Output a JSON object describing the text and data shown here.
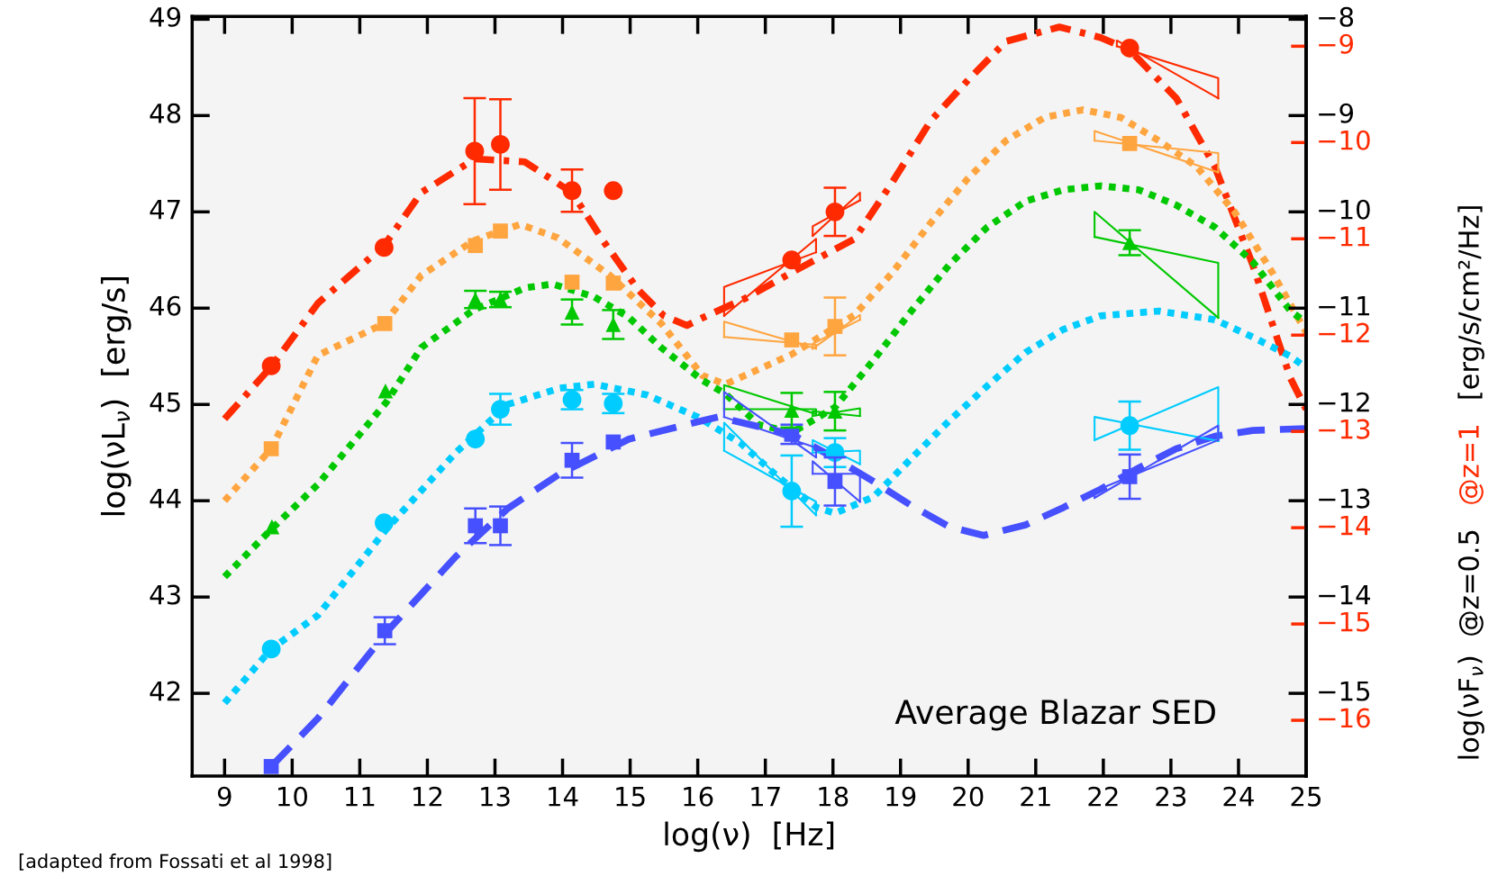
{
  "chart_data": {
    "type": "scatter",
    "xlabel": "log(ν)  [Hz]",
    "ylabel": "log(νL$_{ν}$)  [erg/s]",
    "y2label": "log(νF$_{ν}$)  @z=0.5",
    "y3label": "@z=1",
    "annotations": [
      "Average Blazar SED",
      "[adapted from Fossati et al 1998]",
      "[erg/s/cm²/Hz]"
    ],
    "xlim": [
      8.52,
      25
    ],
    "xticks": [
      9,
      10,
      11,
      12,
      13,
      14,
      15,
      16,
      17,
      18,
      19,
      20,
      21,
      22,
      23,
      24,
      25
    ],
    "ylim": [
      41.14,
      49.03
    ],
    "yticks": [
      42,
      43,
      44,
      45,
      46,
      47,
      48,
      49
    ],
    "y2lim": [
      -15.86,
      -7.97
    ],
    "y2ticks": [
      {
        "value": -15,
        "label": "−15"
      },
      {
        "value": -14,
        "label": "−14"
      },
      {
        "value": -13,
        "label": "−13"
      },
      {
        "value": -12,
        "label": "−12"
      },
      {
        "value": -11,
        "label": "−11"
      },
      {
        "value": -10,
        "label": "−10"
      },
      {
        "value": -9,
        "label": "−9"
      },
      {
        "value": -8,
        "label": "−8"
      }
    ],
    "y3lim": [
      -16.58,
      -8.69
    ],
    "y3ticks": [
      {
        "value": -16,
        "label": "−16"
      },
      {
        "value": -15,
        "label": "−15"
      },
      {
        "value": -14,
        "label": "−14"
      },
      {
        "value": -13,
        "label": "−13"
      },
      {
        "value": -12,
        "label": "−12"
      },
      {
        "value": -11,
        "label": "−11"
      },
      {
        "value": -10,
        "label": "−10"
      },
      {
        "value": -9,
        "label": "−9"
      }
    ],
    "grid": false,
    "legend": false,
    "series": [
      {
        "type": "line",
        "color": "#ff2a00",
        "line_style": "dashdot",
        "marker": "none",
        "x": [
          9,
          9.7,
          10.38,
          11.36,
          11.91,
          12.7,
          13.44,
          14.14,
          14.61,
          15.12,
          15.5,
          15.84,
          16.07,
          16.7,
          17.39,
          18.32,
          18.88,
          19.44,
          20.0,
          20.56,
          21.35,
          21.96,
          22.39,
          23.08,
          23.65,
          24.21,
          24.77,
          25
        ],
        "values": [
          44.85,
          45.4,
          46.05,
          46.65,
          47.2,
          47.55,
          47.52,
          47.2,
          46.69,
          46.19,
          45.92,
          45.82,
          45.9,
          46.1,
          46.37,
          46.72,
          47.31,
          47.94,
          48.37,
          48.77,
          48.92,
          48.81,
          48.68,
          48.18,
          47.47,
          46.45,
          45.27,
          44.95
        ]
      },
      {
        "type": "line",
        "color": "#ffa540",
        "line_style": "dotted",
        "marker": "none",
        "x": [
          9,
          9.69,
          10.38,
          11.36,
          11.91,
          12.68,
          13.37,
          13.93,
          14.7,
          15.46,
          16.07,
          16.41,
          17.39,
          18.32,
          18.88,
          19.44,
          20.0,
          20.56,
          21.13,
          21.7,
          22.26,
          22.82,
          23.38,
          23.94,
          24.5,
          25
        ],
        "values": [
          44.0,
          44.54,
          45.51,
          45.84,
          46.34,
          46.7,
          46.87,
          46.73,
          46.34,
          45.84,
          45.3,
          45.21,
          45.52,
          45.93,
          46.37,
          46.88,
          47.35,
          47.74,
          47.98,
          48.06,
          47.98,
          47.74,
          47.47,
          47.0,
          46.37,
          45.75
        ]
      },
      {
        "type": "line",
        "color": "#00c800",
        "line_style": "dotted",
        "marker": "none",
        "x": [
          9,
          9.7,
          10.38,
          11.4,
          11.91,
          12.68,
          13.44,
          13.85,
          14.46,
          14.97,
          15.46,
          16.07,
          16.41,
          16.9,
          17.4,
          18.03,
          18.6,
          19.16,
          19.72,
          20.28,
          20.85,
          21.41,
          21.96,
          22.52,
          23.08,
          23.65,
          24.21,
          24.77,
          25
        ],
        "values": [
          43.21,
          43.71,
          44.17,
          45.03,
          45.59,
          45.98,
          46.21,
          46.25,
          46.12,
          45.91,
          45.59,
          45.25,
          45.11,
          44.79,
          44.71,
          44.97,
          45.46,
          45.97,
          46.45,
          46.84,
          47.11,
          47.23,
          47.27,
          47.23,
          47.07,
          46.84,
          46.48,
          45.97,
          45.85
        ]
      },
      {
        "type": "line",
        "color": "#00ccff",
        "line_style": "dotted",
        "marker": "none",
        "x": [
          9,
          9.69,
          10.38,
          11.4,
          12.42,
          13.19,
          13.96,
          14.47,
          15.24,
          16.0,
          16.63,
          17.2,
          17.76,
          18.03,
          18.6,
          19.16,
          19.72,
          20.28,
          20.85,
          21.41,
          21.96,
          22.82,
          23.65,
          24.21,
          24.77,
          25
        ],
        "values": [
          41.9,
          42.46,
          42.81,
          43.71,
          44.5,
          45.0,
          45.17,
          45.21,
          45.1,
          44.87,
          44.6,
          44.24,
          43.93,
          43.87,
          44.04,
          44.44,
          44.83,
          45.19,
          45.54,
          45.78,
          45.92,
          45.97,
          45.88,
          45.7,
          45.5,
          45.38
        ]
      },
      {
        "type": "line",
        "color": "#4650ff",
        "line_style": "dashed",
        "marker": "none",
        "x": [
          9.69,
          10.38,
          11.4,
          12.42,
          13.19,
          13.96,
          14.98,
          16.0,
          16.3,
          17.39,
          18.03,
          18.6,
          19.16,
          19.72,
          20.23,
          20.85,
          21.41,
          21.96,
          22.52,
          23.08,
          23.65,
          24.21,
          25
        ],
        "values": [
          41.24,
          41.74,
          42.64,
          43.42,
          43.92,
          44.28,
          44.64,
          44.82,
          44.87,
          44.69,
          44.44,
          44.2,
          43.95,
          43.73,
          43.64,
          43.75,
          43.93,
          44.12,
          44.34,
          44.54,
          44.67,
          44.73,
          44.75
        ]
      },
      {
        "type": "line",
        "color": "#ff2a00",
        "line_style": "solid",
        "marker": "none",
        "x": [
          16.39,
          16.39,
          17.75
        ],
        "values": [
          45.92,
          46.22,
          46.58
        ]
      },
      {
        "type": "line",
        "color": "#ff2a00",
        "line_style": "solid",
        "marker": "none",
        "x": [
          16.39,
          17.75,
          17.75
        ],
        "values": [
          45.92,
          46.72,
          46.58
        ]
      },
      {
        "type": "line",
        "color": "#ff2a00",
        "line_style": "solid",
        "marker": "none",
        "x": [
          17.7,
          17.7,
          18.4
        ],
        "values": [
          46.75,
          46.85,
          47.12
        ]
      },
      {
        "type": "line",
        "color": "#ff2a00",
        "line_style": "solid",
        "marker": "none",
        "x": [
          17.7,
          18.4,
          18.4
        ],
        "values": [
          46.75,
          47.2,
          47.12
        ]
      },
      {
        "type": "line",
        "color": "#ff2a00",
        "line_style": "solid",
        "marker": "none",
        "x": [
          22.2,
          22.2,
          23.7
        ],
        "values": [
          48.72,
          48.78,
          48.18
        ]
      },
      {
        "type": "line",
        "color": "#ff2a00",
        "line_style": "solid",
        "marker": "none",
        "x": [
          22.2,
          23.7,
          23.7
        ],
        "values": [
          48.72,
          48.39,
          48.18
        ]
      },
      {
        "type": "line",
        "color": "#ffa540",
        "line_style": "solid",
        "marker": "none",
        "x": [
          16.39,
          16.39,
          17.75
        ],
        "values": [
          45.7,
          45.86,
          45.58
        ]
      },
      {
        "type": "line",
        "color": "#ffa540",
        "line_style": "solid",
        "marker": "none",
        "x": [
          16.39,
          17.75,
          17.75
        ],
        "values": [
          45.7,
          45.62,
          45.58
        ]
      },
      {
        "type": "line",
        "color": "#ffa540",
        "line_style": "solid",
        "marker": "none",
        "x": [
          17.7,
          17.7,
          18.4
        ],
        "values": [
          45.58,
          45.63,
          45.88
        ]
      },
      {
        "type": "line",
        "color": "#ffa540",
        "line_style": "solid",
        "marker": "none",
        "x": [
          17.7,
          18.4,
          18.4
        ],
        "values": [
          45.58,
          45.93,
          45.88
        ]
      },
      {
        "type": "line",
        "color": "#ffa540",
        "line_style": "solid",
        "marker": "none",
        "x": [
          21.87,
          21.87,
          23.7
        ],
        "values": [
          47.74,
          47.84,
          47.41
        ]
      },
      {
        "type": "line",
        "color": "#ffa540",
        "line_style": "solid",
        "marker": "none",
        "x": [
          21.87,
          23.7,
          23.7
        ],
        "values": [
          47.74,
          47.61,
          47.41
        ]
      },
      {
        "type": "line",
        "color": "#00c800",
        "line_style": "solid",
        "marker": "none",
        "x": [
          16.39,
          16.39,
          17.75
        ],
        "values": [
          44.95,
          45.2,
          44.9
        ]
      },
      {
        "type": "line",
        "color": "#00c800",
        "line_style": "solid",
        "marker": "none",
        "x": [
          16.39,
          17.75,
          17.75
        ],
        "values": [
          44.95,
          44.95,
          44.9
        ]
      },
      {
        "type": "line",
        "color": "#00c800",
        "line_style": "solid",
        "marker": "none",
        "x": [
          17.7,
          17.7,
          18.4
        ],
        "values": [
          44.88,
          44.93,
          44.88
        ]
      },
      {
        "type": "line",
        "color": "#00c800",
        "line_style": "solid",
        "marker": "none",
        "x": [
          17.7,
          18.4,
          18.4
        ],
        "values": [
          44.88,
          44.96,
          44.88
        ]
      },
      {
        "type": "line",
        "color": "#00c800",
        "line_style": "solid",
        "marker": "none",
        "x": [
          21.87,
          21.87,
          23.7
        ],
        "values": [
          46.74,
          47.0,
          45.9
        ]
      },
      {
        "type": "line",
        "color": "#00c800",
        "line_style": "solid",
        "marker": "none",
        "x": [
          21.87,
          23.7,
          23.7
        ],
        "values": [
          46.74,
          46.47,
          45.9
        ]
      },
      {
        "type": "line",
        "color": "#00ccff",
        "line_style": "solid",
        "marker": "none",
        "x": [
          16.39,
          16.39,
          17.75
        ],
        "values": [
          44.52,
          44.81,
          43.85
        ]
      },
      {
        "type": "line",
        "color": "#00ccff",
        "line_style": "solid",
        "marker": "none",
        "x": [
          16.39,
          17.75,
          17.75
        ],
        "values": [
          44.52,
          43.99,
          43.85
        ]
      },
      {
        "type": "line",
        "color": "#00ccff",
        "line_style": "solid",
        "marker": "none",
        "x": [
          17.7,
          17.7,
          18.4
        ],
        "values": [
          44.5,
          44.63,
          44.38
        ]
      },
      {
        "type": "line",
        "color": "#00ccff",
        "line_style": "solid",
        "marker": "none",
        "x": [
          17.7,
          18.4,
          18.4
        ],
        "values": [
          44.5,
          44.52,
          44.38
        ]
      },
      {
        "type": "line",
        "color": "#00ccff",
        "line_style": "solid",
        "marker": "none",
        "x": [
          21.87,
          21.87,
          23.7
        ],
        "values": [
          44.63,
          44.87,
          44.62
        ]
      },
      {
        "type": "line",
        "color": "#00ccff",
        "line_style": "solid",
        "marker": "none",
        "x": [
          21.87,
          23.7,
          23.7
        ],
        "values": [
          44.63,
          45.18,
          44.62
        ]
      },
      {
        "type": "line",
        "color": "#4650ff",
        "line_style": "solid",
        "marker": "none",
        "x": [
          16.39,
          16.39,
          17.75
        ],
        "values": [
          44.87,
          45.13,
          44.45
        ]
      },
      {
        "type": "line",
        "color": "#4650ff",
        "line_style": "solid",
        "marker": "none",
        "x": [
          16.39,
          17.75,
          17.75
        ],
        "values": [
          44.87,
          44.55,
          44.45
        ]
      },
      {
        "type": "line",
        "color": "#4650ff",
        "line_style": "solid",
        "marker": "none",
        "x": [
          17.7,
          17.7,
          18.4
        ],
        "values": [
          44.28,
          44.41,
          43.99
        ]
      },
      {
        "type": "line",
        "color": "#4650ff",
        "line_style": "solid",
        "marker": "none",
        "x": [
          17.7,
          18.4,
          18.4
        ],
        "values": [
          44.28,
          44.28,
          43.99
        ]
      },
      {
        "type": "line",
        "color": "#4650ff",
        "line_style": "solid",
        "marker": "none",
        "x": [
          21.87,
          21.87,
          23.7
        ],
        "values": [
          44.03,
          44.1,
          44.63
        ]
      },
      {
        "type": "line",
        "color": "#4650ff",
        "line_style": "solid",
        "marker": "none",
        "x": [
          21.87,
          23.7,
          23.7
        ],
        "values": [
          44.03,
          44.78,
          44.63
        ]
      },
      {
        "type": "scatter",
        "color": "#ff2a00",
        "marker": "circle",
        "x": [
          9.69,
          11.36,
          12.7,
          13.08,
          14.14,
          14.75,
          17.39,
          18.03,
          22.39
        ],
        "values": [
          45.4,
          46.63,
          47.63,
          47.7,
          47.22,
          47.22,
          46.5,
          47.0,
          48.7
        ],
        "errors": [
          null,
          null,
          0.55,
          0.47,
          0.22,
          null,
          null,
          0.25,
          null
        ]
      },
      {
        "type": "scatter",
        "color": "#ffa540",
        "marker": "square",
        "x": [
          9.69,
          11.37,
          12.71,
          13.08,
          14.14,
          14.75,
          17.39,
          18.03,
          22.39
        ],
        "values": [
          44.54,
          45.84,
          46.65,
          46.8,
          46.27,
          46.26,
          45.67,
          45.81,
          47.71
        ],
        "errors": [
          null,
          null,
          null,
          null,
          null,
          null,
          null,
          0.3,
          null
        ]
      },
      {
        "type": "scatter",
        "color": "#00ccff",
        "marker": "circle",
        "x": [
          9.69,
          11.36,
          12.71,
          13.08,
          14.14,
          14.75,
          17.39,
          18.03,
          22.39
        ],
        "values": [
          42.46,
          43.77,
          44.64,
          44.95,
          45.05,
          45.01,
          44.1,
          44.5,
          44.78
        ],
        "errors": [
          null,
          null,
          null,
          0.16,
          0.1,
          0.1,
          0.37,
          0.15,
          0.25
        ]
      },
      {
        "type": "scatter",
        "color": "#4650ff",
        "marker": "square",
        "x": [
          9.69,
          11.37,
          12.71,
          13.08,
          14.14,
          14.75,
          17.39,
          18.03,
          22.39
        ],
        "values": [
          41.24,
          42.65,
          43.74,
          43.74,
          44.42,
          44.61,
          44.69,
          44.2,
          44.25
        ],
        "errors": [
          null,
          0.14,
          0.18,
          0.2,
          0.18,
          null,
          0.1,
          0.25,
          0.23
        ]
      },
      {
        "type": "scatter",
        "color": "#00c800",
        "marker": "triangle",
        "x": [
          9.7,
          11.38,
          12.71,
          13.08,
          14.14,
          14.75,
          17.39,
          18.03,
          22.39
        ],
        "values": [
          43.73,
          45.14,
          46.09,
          46.09,
          45.96,
          45.83,
          44.94,
          44.93,
          46.68
        ],
        "errors": [
          null,
          null,
          0.09,
          0.08,
          0.13,
          0.15,
          0.18,
          0.2,
          0.13
        ]
      }
    ]
  }
}
